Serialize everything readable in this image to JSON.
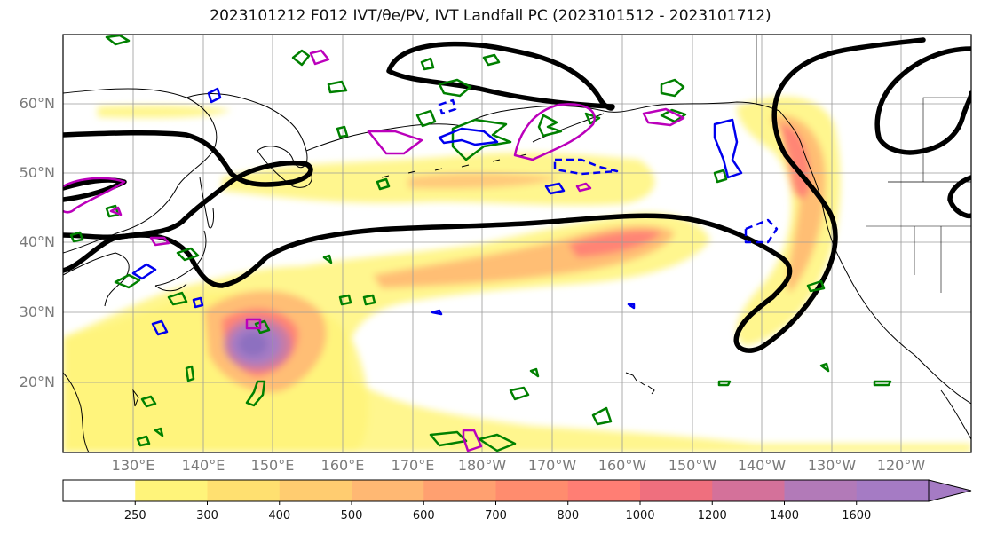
{
  "title": "2023101212 F012 IVT/θe/PV, IVT Landfall PC (2023101512 - 2023101712)",
  "lat_labels": [
    "60°N",
    "50°N",
    "40°N",
    "30°N",
    "20°N"
  ],
  "lon_labels": [
    "130°E",
    "140°E",
    "150°E",
    "160°E",
    "170°E",
    "180°W",
    "170°W",
    "160°W",
    "150°W",
    "140°W",
    "130°W",
    "120°W"
  ],
  "colorbar": {
    "ticks": [
      "250",
      "300",
      "400",
      "500",
      "600",
      "700",
      "800",
      "1000",
      "1200",
      "1400",
      "1600"
    ],
    "colors": [
      "#ffffff",
      "#fff47a",
      "#ffe070",
      "#ffcc70",
      "#ffb873",
      "#ffa070",
      "#ff8c6e",
      "#ff7e74",
      "#ef6f7e",
      "#d4719a",
      "#b27ab8",
      "#a57bc4"
    ]
  },
  "contour_colors": {
    "pv": "#000000",
    "theta_e_pos": "#008000",
    "theta_e_neg": "#0000ee",
    "landfall": "#bb00bb"
  }
}
